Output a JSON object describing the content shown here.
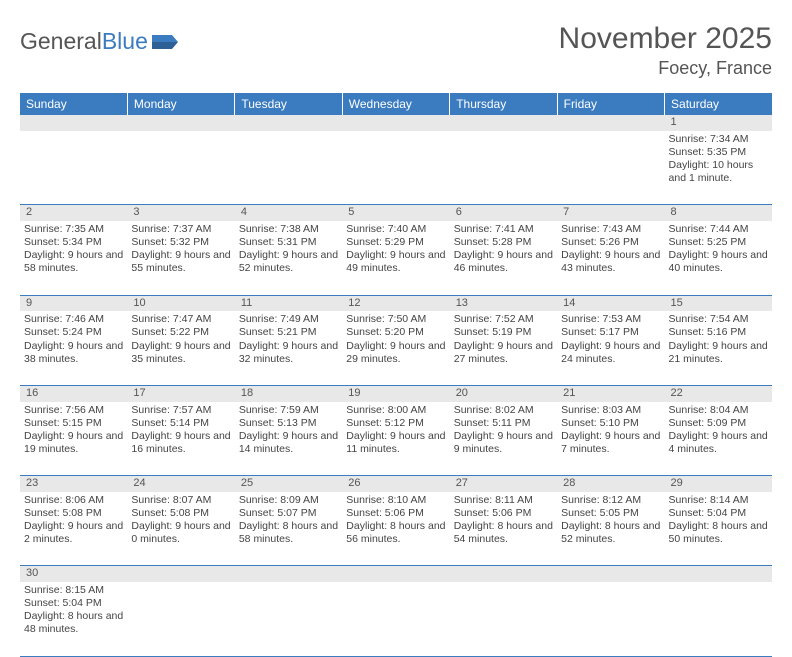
{
  "logo": {
    "text1": "General",
    "text2": "Blue"
  },
  "title": "November 2025",
  "location": "Foecy, France",
  "colors": {
    "header_bg": "#3b7bbf",
    "daynum_bg": "#e8e8e8",
    "row_border": "#3b7bbf"
  },
  "weekdays": [
    "Sunday",
    "Monday",
    "Tuesday",
    "Wednesday",
    "Thursday",
    "Friday",
    "Saturday"
  ],
  "weeks": [
    {
      "days": [
        null,
        null,
        null,
        null,
        null,
        null,
        {
          "n": "1",
          "sunrise": "7:34 AM",
          "sunset": "5:35 PM",
          "daylight": "10 hours and 1 minute."
        }
      ]
    },
    {
      "days": [
        {
          "n": "2",
          "sunrise": "7:35 AM",
          "sunset": "5:34 PM",
          "daylight": "9 hours and 58 minutes."
        },
        {
          "n": "3",
          "sunrise": "7:37 AM",
          "sunset": "5:32 PM",
          "daylight": "9 hours and 55 minutes."
        },
        {
          "n": "4",
          "sunrise": "7:38 AM",
          "sunset": "5:31 PM",
          "daylight": "9 hours and 52 minutes."
        },
        {
          "n": "5",
          "sunrise": "7:40 AM",
          "sunset": "5:29 PM",
          "daylight": "9 hours and 49 minutes."
        },
        {
          "n": "6",
          "sunrise": "7:41 AM",
          "sunset": "5:28 PM",
          "daylight": "9 hours and 46 minutes."
        },
        {
          "n": "7",
          "sunrise": "7:43 AM",
          "sunset": "5:26 PM",
          "daylight": "9 hours and 43 minutes."
        },
        {
          "n": "8",
          "sunrise": "7:44 AM",
          "sunset": "5:25 PM",
          "daylight": "9 hours and 40 minutes."
        }
      ]
    },
    {
      "days": [
        {
          "n": "9",
          "sunrise": "7:46 AM",
          "sunset": "5:24 PM",
          "daylight": "9 hours and 38 minutes."
        },
        {
          "n": "10",
          "sunrise": "7:47 AM",
          "sunset": "5:22 PM",
          "daylight": "9 hours and 35 minutes."
        },
        {
          "n": "11",
          "sunrise": "7:49 AM",
          "sunset": "5:21 PM",
          "daylight": "9 hours and 32 minutes."
        },
        {
          "n": "12",
          "sunrise": "7:50 AM",
          "sunset": "5:20 PM",
          "daylight": "9 hours and 29 minutes."
        },
        {
          "n": "13",
          "sunrise": "7:52 AM",
          "sunset": "5:19 PM",
          "daylight": "9 hours and 27 minutes."
        },
        {
          "n": "14",
          "sunrise": "7:53 AM",
          "sunset": "5:17 PM",
          "daylight": "9 hours and 24 minutes."
        },
        {
          "n": "15",
          "sunrise": "7:54 AM",
          "sunset": "5:16 PM",
          "daylight": "9 hours and 21 minutes."
        }
      ]
    },
    {
      "days": [
        {
          "n": "16",
          "sunrise": "7:56 AM",
          "sunset": "5:15 PM",
          "daylight": "9 hours and 19 minutes."
        },
        {
          "n": "17",
          "sunrise": "7:57 AM",
          "sunset": "5:14 PM",
          "daylight": "9 hours and 16 minutes."
        },
        {
          "n": "18",
          "sunrise": "7:59 AM",
          "sunset": "5:13 PM",
          "daylight": "9 hours and 14 minutes."
        },
        {
          "n": "19",
          "sunrise": "8:00 AM",
          "sunset": "5:12 PM",
          "daylight": "9 hours and 11 minutes."
        },
        {
          "n": "20",
          "sunrise": "8:02 AM",
          "sunset": "5:11 PM",
          "daylight": "9 hours and 9 minutes."
        },
        {
          "n": "21",
          "sunrise": "8:03 AM",
          "sunset": "5:10 PM",
          "daylight": "9 hours and 7 minutes."
        },
        {
          "n": "22",
          "sunrise": "8:04 AM",
          "sunset": "5:09 PM",
          "daylight": "9 hours and 4 minutes."
        }
      ]
    },
    {
      "days": [
        {
          "n": "23",
          "sunrise": "8:06 AM",
          "sunset": "5:08 PM",
          "daylight": "9 hours and 2 minutes."
        },
        {
          "n": "24",
          "sunrise": "8:07 AM",
          "sunset": "5:08 PM",
          "daylight": "9 hours and 0 minutes."
        },
        {
          "n": "25",
          "sunrise": "8:09 AM",
          "sunset": "5:07 PM",
          "daylight": "8 hours and 58 minutes."
        },
        {
          "n": "26",
          "sunrise": "8:10 AM",
          "sunset": "5:06 PM",
          "daylight": "8 hours and 56 minutes."
        },
        {
          "n": "27",
          "sunrise": "8:11 AM",
          "sunset": "5:06 PM",
          "daylight": "8 hours and 54 minutes."
        },
        {
          "n": "28",
          "sunrise": "8:12 AM",
          "sunset": "5:05 PM",
          "daylight": "8 hours and 52 minutes."
        },
        {
          "n": "29",
          "sunrise": "8:14 AM",
          "sunset": "5:04 PM",
          "daylight": "8 hours and 50 minutes."
        }
      ]
    },
    {
      "days": [
        {
          "n": "30",
          "sunrise": "8:15 AM",
          "sunset": "5:04 PM",
          "daylight": "8 hours and 48 minutes."
        },
        null,
        null,
        null,
        null,
        null,
        null
      ]
    }
  ],
  "labels": {
    "sunrise": "Sunrise: ",
    "sunset": "Sunset: ",
    "daylight": "Daylight: "
  }
}
